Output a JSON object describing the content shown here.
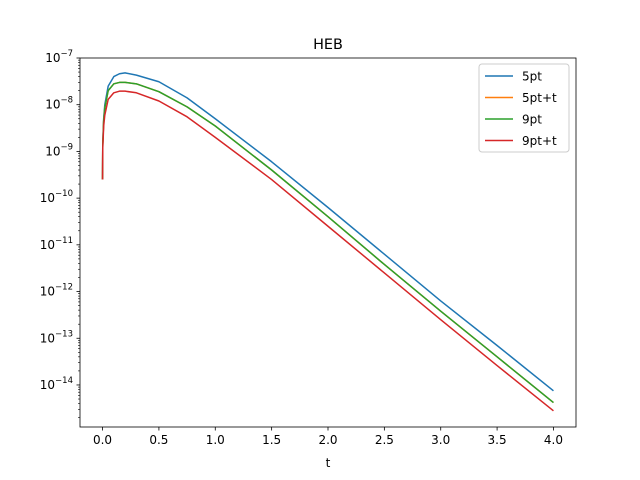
{
  "chart_data": {
    "type": "line",
    "title": "HEB",
    "xlabel": "t",
    "ylabel": "",
    "yscale": "log",
    "xlim": [
      -0.2,
      4.2
    ],
    "ylim_exponent": [
      -14.9,
      -7.0
    ],
    "xticks": [
      0.0,
      0.5,
      1.0,
      1.5,
      2.0,
      2.5,
      3.0,
      3.5,
      4.0
    ],
    "xtick_labels": [
      "0.0",
      "0.5",
      "1.0",
      "1.5",
      "2.0",
      "2.5",
      "3.0",
      "3.5",
      "4.0"
    ],
    "yticks_exponent": [
      -14,
      -13,
      -12,
      -11,
      -10,
      -9,
      -8,
      -7
    ],
    "ytick_base": "10",
    "ytick_exponent_labels": [
      "−14",
      "−13",
      "−12",
      "−11",
      "−10",
      "−9",
      "−8",
      "−7"
    ],
    "grid": false,
    "legend_position": "top-right",
    "series": [
      {
        "name": "5pt",
        "color": "#1f77b4",
        "x": [
          0.0,
          0.002,
          0.01,
          0.02,
          0.05,
          0.1,
          0.15,
          0.2,
          0.3,
          0.5,
          0.75,
          1.0,
          1.5,
          2.0,
          2.5,
          3.0,
          3.5,
          4.0
        ],
        "y": [
          2.5e-10,
          1.5e-09,
          5e-09,
          1e-08,
          2.5e-08,
          4e-08,
          4.6e-08,
          4.8e-08,
          4.3e-08,
          3.1e-08,
          1.4e-08,
          5e-09,
          6e-10,
          6.3e-11,
          6.3e-12,
          6.3e-13,
          7e-14,
          7.5e-15
        ]
      },
      {
        "name": "5pt+t",
        "color": "#ff7f0e",
        "x": [
          0.0,
          0.002,
          0.01,
          0.02,
          0.05,
          0.1,
          0.15,
          0.2,
          0.3,
          0.5,
          0.75,
          1.0,
          1.5,
          2.0,
          2.5,
          3.0,
          3.5,
          4.0
        ],
        "y": [
          2.5e-10,
          1.4e-09,
          4.5e-09,
          8.5e-09,
          2e-08,
          2.8e-08,
          3e-08,
          3e-08,
          2.8e-08,
          1.9e-08,
          9e-09,
          3.5e-09,
          4e-10,
          4e-11,
          3.8e-12,
          3.8e-13,
          4e-14,
          4.2e-15
        ]
      },
      {
        "name": "9pt",
        "color": "#2ca02c",
        "x": [
          0.0,
          0.002,
          0.01,
          0.02,
          0.05,
          0.1,
          0.15,
          0.2,
          0.3,
          0.5,
          0.75,
          1.0,
          1.5,
          2.0,
          2.5,
          3.0,
          3.5,
          4.0
        ],
        "y": [
          2.5e-10,
          1.4e-09,
          4.5e-09,
          8.5e-09,
          2e-08,
          2.8e-08,
          3e-08,
          3e-08,
          2.8e-08,
          1.9e-08,
          9e-09,
          3.5e-09,
          4e-10,
          4e-11,
          3.8e-12,
          3.8e-13,
          4e-14,
          4.2e-15
        ]
      },
      {
        "name": "9pt+t",
        "color": "#d62728",
        "x": [
          0.0,
          0.002,
          0.01,
          0.02,
          0.05,
          0.1,
          0.15,
          0.2,
          0.3,
          0.5,
          0.75,
          1.0,
          1.5,
          2.0,
          2.5,
          3.0,
          3.5,
          4.0
        ],
        "y": [
          2.5e-10,
          1.2e-09,
          3.5e-09,
          6e-09,
          1.3e-08,
          1.8e-08,
          1.95e-08,
          1.95e-08,
          1.8e-08,
          1.2e-08,
          5.5e-09,
          2e-09,
          2.5e-10,
          2.5e-11,
          2.5e-12,
          2.5e-13,
          2.6e-14,
          2.8e-15
        ]
      }
    ]
  }
}
